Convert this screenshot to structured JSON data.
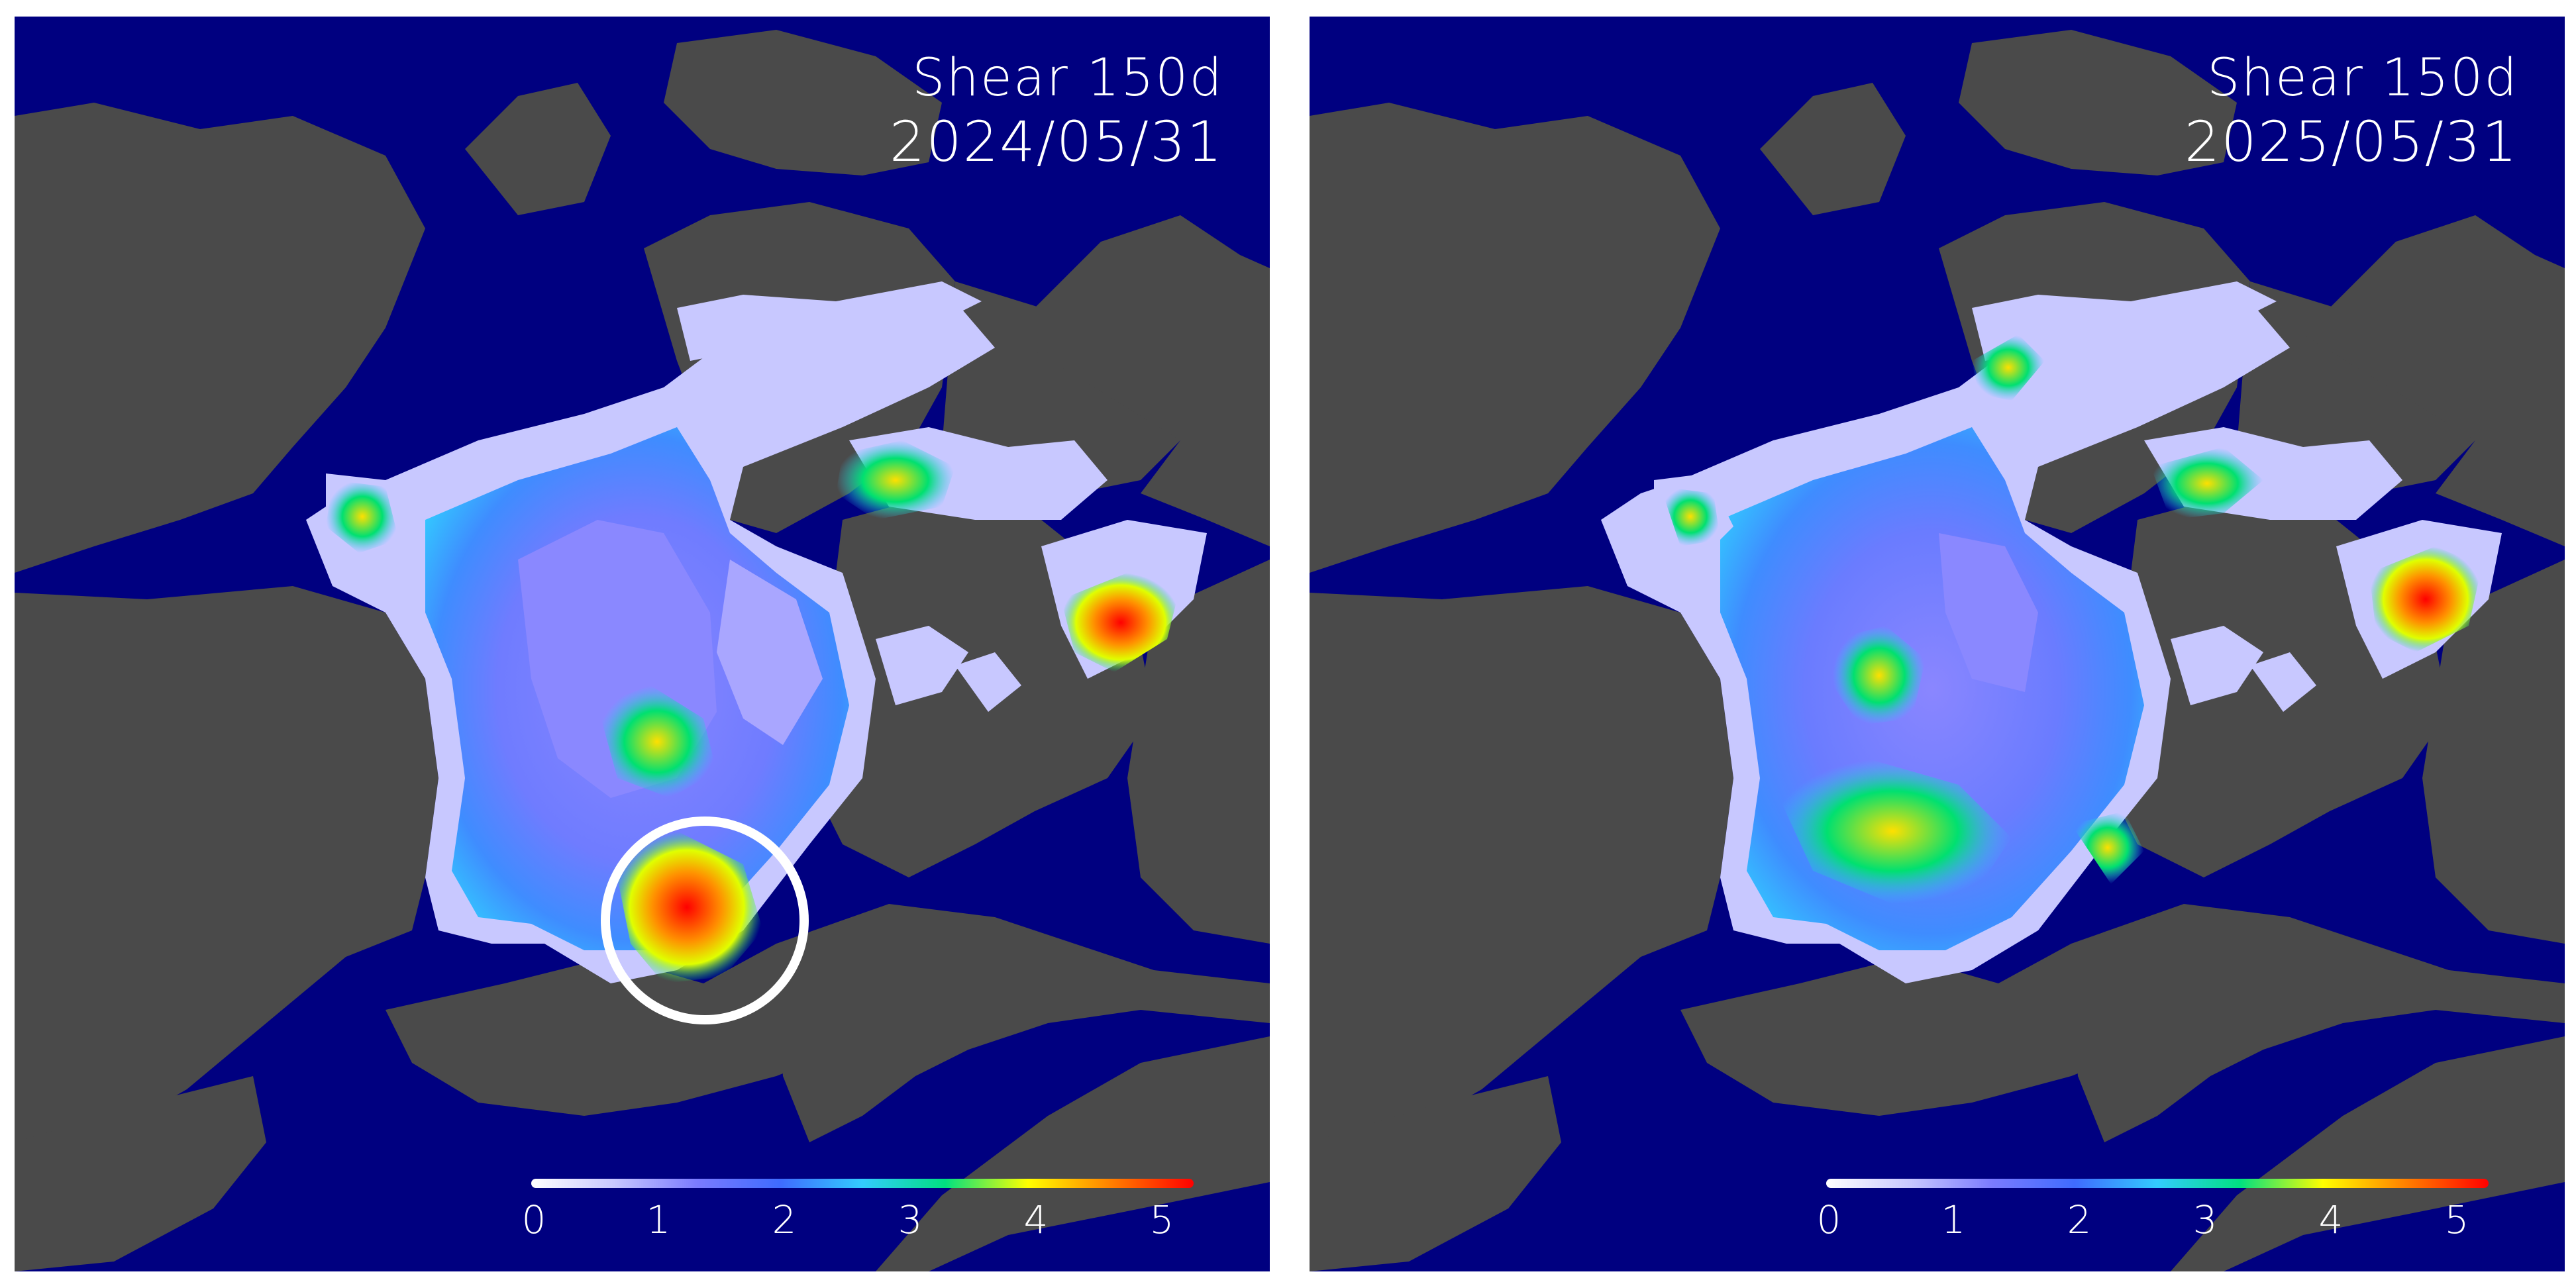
{
  "panels": [
    {
      "title": "Shear 150d",
      "date": "2024/05/31",
      "highlight_circle": true
    },
    {
      "title": "Shear 150d",
      "date": "2025/05/31",
      "highlight_circle": false
    }
  ],
  "colorbar": {
    "ticks": [
      "0",
      "1",
      "2",
      "3",
      "4",
      "5"
    ],
    "min": 0,
    "max": 5,
    "colors": [
      "#ffffff",
      "#c8c8ff",
      "#7b7bff",
      "#3f6bff",
      "#33ccff",
      "#00e080",
      "#ffff00",
      "#ff8000",
      "#ff0000"
    ]
  },
  "colors": {
    "ocean": "#000080",
    "land": "#4a4a4a",
    "ice_low": "#8080ff",
    "ice_high": "#ff0000"
  }
}
